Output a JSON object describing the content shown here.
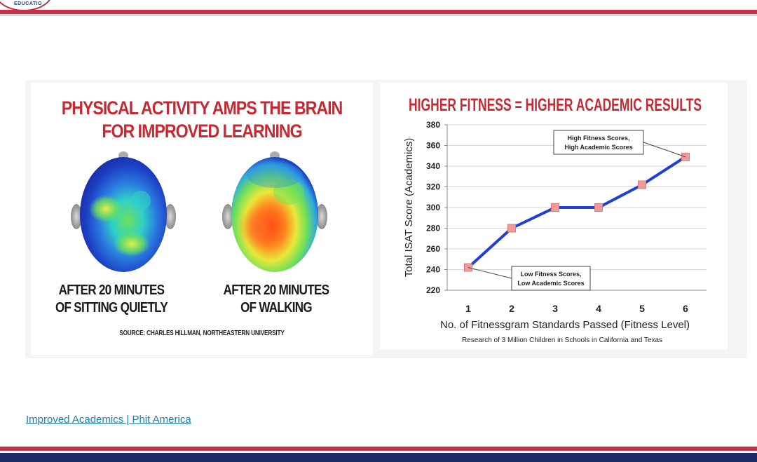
{
  "header": {
    "logo_text": "EDUCATIO"
  },
  "left_figure": {
    "title_line1": "PHYSICAL ACTIVITY AMPS THE BRAIN",
    "title_line2": "FOR IMPROVED LEARNING",
    "caption_left_line1": "AFTER 20 MINUTES",
    "caption_left_line2": "OF SITTING QUIETLY",
    "caption_right_line1": "AFTER 20 MINUTES",
    "caption_right_line2": "OF WALKING",
    "source": "SOURCE: CHARLES HILLMAN, NORTHEASTERN UNIVERSITY"
  },
  "chart_data": {
    "type": "line",
    "title": "HIGHER FITNESS = HIGHER ACADEMIC RESULTS",
    "xlabel": "No. of Fitnessgram Standards Passed (Fitness Level)",
    "ylabel": "Total ISAT Score (Academics)",
    "subtitle": "Research of 3 Million Children in Schools in California and Texas",
    "x": [
      1,
      2,
      3,
      4,
      5,
      6
    ],
    "y": [
      242,
      280,
      300,
      300,
      322,
      349
    ],
    "xlim": [
      1,
      6
    ],
    "ylim": [
      220,
      380
    ],
    "yticks": [
      220,
      240,
      260,
      280,
      300,
      320,
      340,
      360,
      380
    ],
    "grid": true,
    "line_color": "#1f3fd6",
    "marker_color": "#f19a9a",
    "annotations": [
      {
        "line1": "High Fitness Scores,",
        "line2": "High Academic Scores",
        "x": 6,
        "y": 349
      },
      {
        "line1": "Low Fitness Scores,",
        "line2": "Low Academic Scores",
        "x": 1,
        "y": 242
      }
    ]
  },
  "footer": {
    "link_text": "Improved Academics | Phit America"
  }
}
